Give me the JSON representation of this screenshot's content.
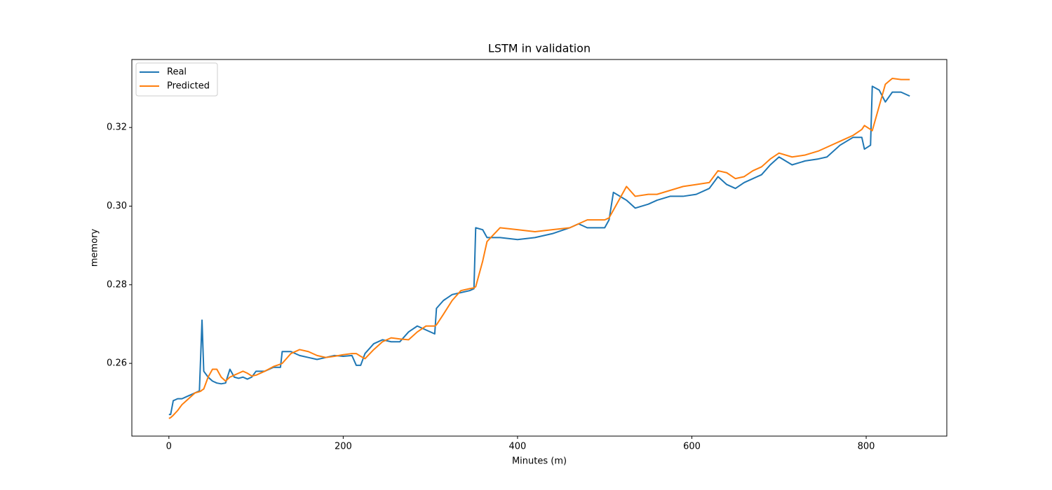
{
  "chart_data": {
    "type": "line",
    "title": "LSTM in validation",
    "x_label": "Minutes (m)",
    "y_label": "memory",
    "x": [
      0,
      2,
      5,
      10,
      15,
      20,
      25,
      30,
      35,
      37,
      38,
      40,
      45,
      50,
      55,
      60,
      65,
      70,
      75,
      80,
      85,
      90,
      95,
      100,
      110,
      120,
      128,
      130,
      140,
      150,
      160,
      170,
      180,
      190,
      200,
      210,
      215,
      220,
      225,
      235,
      245,
      255,
      265,
      275,
      285,
      295,
      305,
      307,
      315,
      325,
      335,
      345,
      350,
      352,
      360,
      365,
      380,
      400,
      420,
      440,
      460,
      470,
      480,
      500,
      505,
      510,
      525,
      535,
      550,
      560,
      575,
      590,
      605,
      620,
      630,
      640,
      650,
      660,
      670,
      680,
      690,
      700,
      715,
      730,
      745,
      755,
      770,
      785,
      795,
      798,
      805,
      807,
      815,
      822,
      830,
      840,
      850
    ],
    "series": [
      {
        "name": "Real",
        "color": "#1f77b4",
        "values": [
          0.247,
          0.247,
          0.2505,
          0.251,
          0.251,
          0.2515,
          0.252,
          0.2525,
          0.253,
          0.265,
          0.271,
          0.258,
          0.2565,
          0.2555,
          0.255,
          0.2548,
          0.255,
          0.2585,
          0.2565,
          0.2562,
          0.2565,
          0.256,
          0.2565,
          0.258,
          0.258,
          0.259,
          0.259,
          0.263,
          0.263,
          0.262,
          0.2615,
          0.261,
          0.2615,
          0.262,
          0.2618,
          0.262,
          0.2595,
          0.2595,
          0.2625,
          0.265,
          0.266,
          0.2655,
          0.2655,
          0.268,
          0.2695,
          0.2685,
          0.2675,
          0.274,
          0.276,
          0.2775,
          0.278,
          0.2785,
          0.279,
          0.2945,
          0.294,
          0.292,
          0.292,
          0.2915,
          0.292,
          0.293,
          0.2945,
          0.2955,
          0.2945,
          0.2945,
          0.2965,
          0.3035,
          0.3015,
          0.2995,
          0.3005,
          0.3015,
          0.3025,
          0.3025,
          0.303,
          0.3045,
          0.3075,
          0.3055,
          0.3045,
          0.306,
          0.307,
          0.308,
          0.3105,
          0.3125,
          0.3105,
          0.3115,
          0.312,
          0.3125,
          0.3155,
          0.3175,
          0.3175,
          0.3145,
          0.3155,
          0.3305,
          0.3295,
          0.3265,
          0.329,
          0.329,
          0.328
        ]
      },
      {
        "name": "Predicted",
        "color": "#ff7f0e",
        "values": [
          0.246,
          0.2462,
          0.2468,
          0.248,
          0.2495,
          0.2505,
          0.2515,
          0.2525,
          0.2528,
          0.253,
          0.2532,
          0.2535,
          0.2565,
          0.2585,
          0.2585,
          0.2565,
          0.2555,
          0.2565,
          0.257,
          0.2575,
          0.258,
          0.2575,
          0.2568,
          0.257,
          0.258,
          0.2592,
          0.2598,
          0.26,
          0.2625,
          0.2635,
          0.263,
          0.262,
          0.2615,
          0.2618,
          0.2622,
          0.2625,
          0.2625,
          0.2618,
          0.2612,
          0.2635,
          0.2655,
          0.2665,
          0.2662,
          0.266,
          0.268,
          0.2695,
          0.2695,
          0.2698,
          0.2725,
          0.276,
          0.2785,
          0.279,
          0.2792,
          0.2795,
          0.286,
          0.291,
          0.2945,
          0.294,
          0.2935,
          0.294,
          0.2945,
          0.2955,
          0.2965,
          0.2965,
          0.297,
          0.299,
          0.305,
          0.3025,
          0.303,
          0.303,
          0.304,
          0.305,
          0.3055,
          0.306,
          0.309,
          0.3085,
          0.307,
          0.3075,
          0.309,
          0.31,
          0.312,
          0.3135,
          0.3125,
          0.313,
          0.314,
          0.315,
          0.3165,
          0.318,
          0.3195,
          0.3205,
          0.3195,
          0.3192,
          0.3255,
          0.331,
          0.3325,
          0.3322,
          0.3322
        ]
      }
    ],
    "xlim": [
      -42.5,
      892.5
    ],
    "xticks": [
      0,
      200,
      400,
      600,
      800
    ],
    "ylim": [
      0.2415,
      0.3373
    ],
    "yticks": [
      0.26,
      0.28,
      {
        "value": 0.3,
        "label": "0.30"
      },
      0.32
    ],
    "legend": "upper left"
  }
}
